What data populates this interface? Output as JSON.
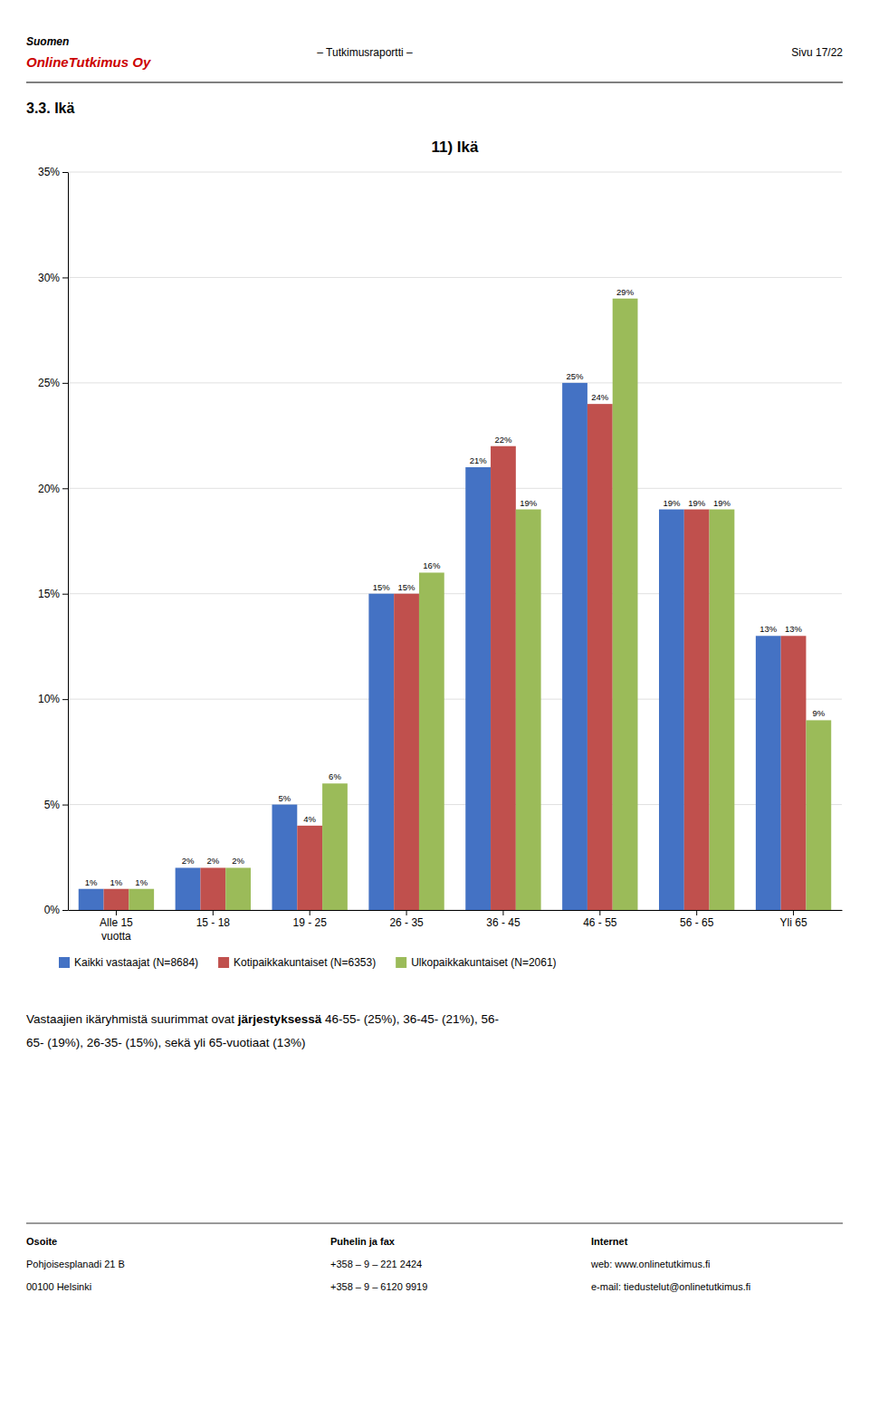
{
  "header": {
    "suomen": "Suomen",
    "company": {
      "text": "OnlineTutkimus Oy",
      "color": "#CC0000"
    },
    "center": "– Tutkimusraportti –",
    "right": "Sivu 17/22"
  },
  "section_title": "3.3. Ikä",
  "chart_data": {
    "type": "bar",
    "title": "11) Ikä",
    "categories": [
      "Alle 15\nvuotta",
      "15 - 18",
      "19 - 25",
      "26 - 35",
      "36 - 45",
      "46 - 55",
      "56 - 65",
      "Yli 65"
    ],
    "series": [
      {
        "name": "Kaikki vastaajat (N=8684)",
        "color": "#4472C4",
        "values": [
          1,
          2,
          5,
          15,
          21,
          25,
          19,
          13
        ],
        "value_labels": [
          "1%",
          "2%",
          "5%",
          "15%",
          "21%",
          "25%",
          "19%",
          "13%"
        ]
      },
      {
        "name": "Kotipaikkakuntaiset (N=6353)",
        "color": "#C0504D",
        "values": [
          1,
          2,
          4,
          15,
          22,
          24,
          19,
          13
        ],
        "value_labels": [
          "1%",
          "2%",
          "4%",
          "15%",
          "22%",
          "24%",
          "19%",
          "13%"
        ]
      },
      {
        "name": "Ulkopaikkakuntaiset (N=2061)",
        "color": "#9BBB59",
        "values": [
          1,
          2,
          6,
          16,
          19,
          29,
          19,
          9
        ],
        "value_labels": [
          "1%",
          "2%",
          "6%",
          "16%",
          "19%",
          "29%",
          "19%",
          "9%"
        ]
      }
    ],
    "ylim": [
      0,
      35
    ],
    "yticks": [
      {
        "value": 0,
        "label": "0%"
      },
      {
        "value": 5,
        "label": "5%"
      },
      {
        "value": 10,
        "label": "10%"
      },
      {
        "value": 15,
        "label": "15%"
      },
      {
        "value": 20,
        "label": "20%"
      },
      {
        "value": 25,
        "label": "25%"
      },
      {
        "value": 30,
        "label": "30%"
      },
      {
        "value": 35,
        "label": "35%"
      }
    ],
    "grid": true,
    "legend": "bottom",
    "data_labels": true
  },
  "footer": {
    "line1": [
      "Vastaajien ikäryhmistä suurimmat ovat ",
      "järjestyksessä",
      " 46-55- (25%), 36-45- (21%), 56-"
    ],
    "line2": "65- (19%), 26-35- (15%), sekä yli 65-vuotiaat (13%)"
  },
  "contact": [
    {
      "label": "Osoite",
      "lines": [
        "Pohjoisesplanadi 21 B",
        "00100 Helsinki"
      ]
    },
    {
      "label": "Puhelin ja fax",
      "lines": [
        "+358 – 9 – 221 2424",
        "+358 – 9 – 6120 9919"
      ]
    },
    {
      "label": "Internet",
      "lines": [
        "web: www.onlinetutkimus.fi",
        "e-mail: tiedustelut@onlinetutkimus.fi"
      ]
    }
  ]
}
